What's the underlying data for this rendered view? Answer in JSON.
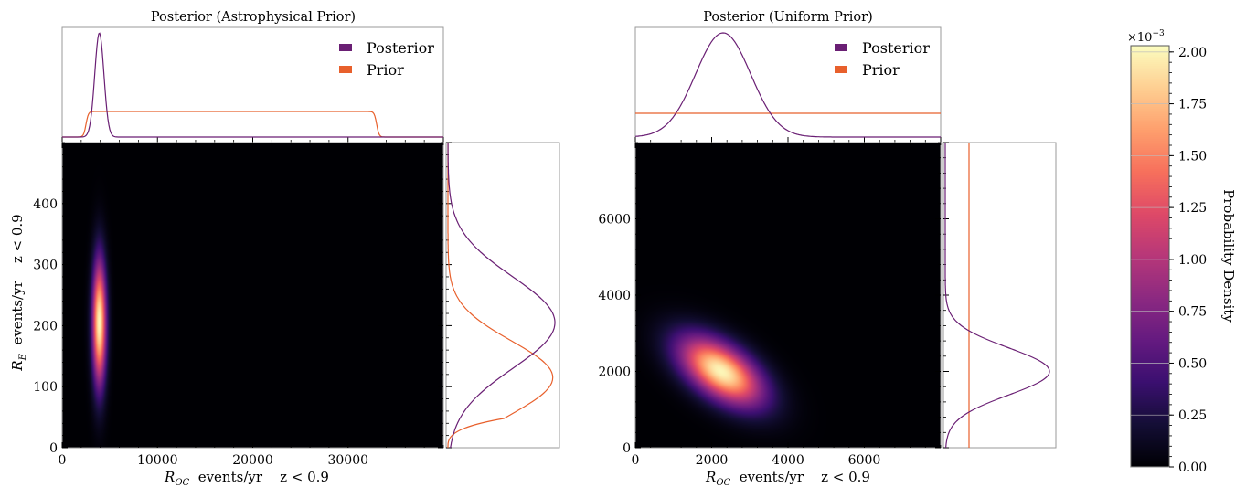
{
  "chart_data": [
    {
      "type": "heatmap",
      "title": "Posterior (Astrophysical Prior)",
      "xlabel_parts": [
        "R",
        "OC",
        "  events/yr    z < 0.9"
      ],
      "ylabel_parts": [
        "R",
        "E",
        "  events/yr    z < 0.9"
      ],
      "xlim": [
        0,
        40000
      ],
      "ylim": [
        0,
        500
      ],
      "xticks": [
        0,
        10000,
        20000,
        30000
      ],
      "xticklabels": [
        "0",
        "10000",
        "20000",
        "30000"
      ],
      "yticks": [
        0,
        100,
        200,
        300,
        400
      ],
      "yticklabels": [
        "0",
        "100",
        "200",
        "300",
        "400"
      ],
      "posterior_peak": {
        "x": 3900,
        "y": 205
      },
      "posterior_spread": {
        "x": 500,
        "y": 70
      },
      "correlation": 0.0,
      "top_marginal": {
        "posterior": {
          "mean": 3900,
          "sd": 480
        },
        "prior": {
          "type": "uniform-smoothed",
          "low": 2500,
          "high": 33000,
          "edge_width": 500
        }
      },
      "right_marginal": {
        "posterior": {
          "mean": 205,
          "sd": 75
        },
        "prior": {
          "type": "gaussian-tailed",
          "mean": 115,
          "sd": 60,
          "floor": 48
        }
      },
      "legend": {
        "entries": [
          "Posterior",
          "Prior"
        ],
        "position": "top-right"
      }
    },
    {
      "type": "heatmap",
      "title": "Posterior (Uniform Prior)",
      "xlabel_parts": [
        "R",
        "OC",
        "  events/yr    z < 0.9"
      ],
      "xlim": [
        0,
        8000
      ],
      "ylim": [
        0,
        8000
      ],
      "xticks": [
        0,
        2000,
        4000,
        6000
      ],
      "xticklabels": [
        "0",
        "2000",
        "4000",
        "6000"
      ],
      "yticks": [
        0,
        2000,
        4000,
        6000
      ],
      "yticklabels": [
        "0",
        "2000",
        "4000",
        "6000"
      ],
      "posterior_peak": {
        "x": 2250,
        "y": 2000
      },
      "posterior_spread": {
        "x": 750,
        "y": 620
      },
      "correlation": -0.55,
      "top_marginal": {
        "posterior": {
          "mean": 2300,
          "sd": 720
        },
        "prior": {
          "type": "uniform"
        }
      },
      "right_marginal": {
        "posterior": {
          "mean": 2000,
          "sd": 620
        },
        "prior": {
          "type": "uniform"
        }
      },
      "legend": {
        "entries": [
          "Posterior",
          "Prior"
        ],
        "position": "top-right"
      }
    }
  ],
  "colorbar": {
    "label": "Probability Density",
    "exponent_label": "×10",
    "exponent_power": "−3",
    "ticks": [
      0.0,
      0.25,
      0.5,
      0.75,
      1.0,
      1.25,
      1.5,
      1.75,
      2.0
    ],
    "ticklabels": [
      "0.00",
      "0.25",
      "0.50",
      "0.75",
      "1.00",
      "1.25",
      "1.50",
      "1.75",
      "2.00"
    ],
    "range": [
      0,
      2.03
    ],
    "colormap": "magma"
  },
  "colors": {
    "posterior": "#6a1f74",
    "prior": "#e8602c",
    "heatmap_background": "#000004"
  }
}
